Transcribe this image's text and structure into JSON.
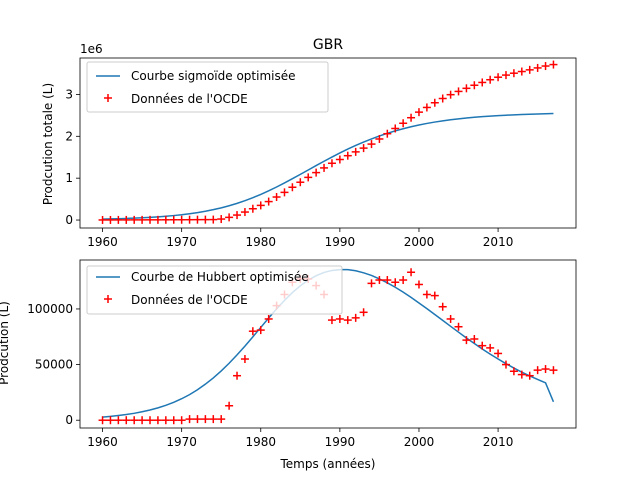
{
  "figure_title": "GBR",
  "colors": {
    "model": "#1f77b4",
    "data": "#ff0000"
  },
  "chart_data": [
    {
      "type": "line",
      "title": "",
      "xlabel": "",
      "ylabel": "Prodcution totale (L)",
      "y_multiplier_label": "1e6",
      "y_multiplier": 1000000,
      "xlim": [
        1957.15,
        2019.85
      ],
      "ylim": [
        -190000,
        3870000
      ],
      "x_ticks": [
        1960,
        1970,
        1980,
        1990,
        2000,
        2010
      ],
      "x_tick_labels": [
        "1960",
        "1970",
        "1980",
        "1990",
        "2000",
        "2010"
      ],
      "y_ticks": [
        0,
        1000000,
        2000000,
        3000000
      ],
      "y_tick_labels": [
        "0",
        "1",
        "2",
        "3"
      ],
      "legend_position": "upper-left",
      "legend": [
        "Courbe sigmoïde optimisée",
        "Données de l'OCDE"
      ],
      "x": [
        1960,
        1961,
        1962,
        1963,
        1964,
        1965,
        1966,
        1967,
        1968,
        1969,
        1970,
        1971,
        1972,
        1973,
        1974,
        1975,
        1976,
        1977,
        1978,
        1979,
        1980,
        1981,
        1982,
        1983,
        1984,
        1985,
        1986,
        1987,
        1988,
        1989,
        1990,
        1991,
        1992,
        1993,
        1994,
        1995,
        1996,
        1997,
        1998,
        1999,
        2000,
        2001,
        2002,
        2003,
        2004,
        2005,
        2006,
        2007,
        2008,
        2009,
        2010,
        2011,
        2012,
        2013,
        2014,
        2015,
        2016,
        2017
      ],
      "series": [
        {
          "name": "Courbe sigmoïde optimisée",
          "kind": "line",
          "values": [
            22000,
            27000,
            32000,
            38000,
            45000,
            54000,
            64000,
            76000,
            90000,
            107000,
            127000,
            151000,
            178000,
            210000,
            248000,
            291000,
            341000,
            398000,
            462000,
            533000,
            612000,
            697000,
            789000,
            886000,
            987000,
            1091000,
            1196000,
            1301000,
            1404000,
            1505000,
            1602000,
            1694000,
            1781000,
            1863000,
            1938000,
            2008000,
            2071000,
            2129000,
            2181000,
            2228000,
            2270000,
            2307000,
            2340000,
            2369000,
            2395000,
            2417000,
            2437000,
            2454000,
            2469000,
            2482000,
            2494000,
            2504000,
            2513000,
            2520000,
            2527000,
            2533000,
            2538000,
            2543000
          ]
        },
        {
          "name": "Données de l'OCDE",
          "kind": "scatter",
          "values": [
            2000,
            2000,
            3000,
            3000,
            4000,
            4000,
            5000,
            5000,
            6000,
            7000,
            7000,
            8000,
            9000,
            10000,
            11000,
            24000,
            64000,
            119000,
            191000,
            270000,
            350000,
            441000,
            550000,
            661000,
            783000,
            903000,
            1019000,
            1133000,
            1245000,
            1356000,
            1446000,
            1537000,
            1628000,
            1718000,
            1814000,
            1936000,
            2062000,
            2187000,
            2312000,
            2444000,
            2577000,
            2689000,
            2801000,
            2903000,
            2994000,
            3072000,
            3146000,
            3219000,
            3286000,
            3351000,
            3411000,
            3462000,
            3507000,
            3547000,
            3587000,
            3633000,
            3678000,
            3713000
          ]
        }
      ]
    },
    {
      "type": "line",
      "title": "",
      "xlabel": "Temps (années)",
      "ylabel": "Prodcution (L)",
      "xlim": [
        1957.15,
        2019.85
      ],
      "ylim": [
        -7000,
        144000
      ],
      "x_ticks": [
        1960,
        1970,
        1980,
        1990,
        2000,
        2010
      ],
      "x_tick_labels": [
        "1960",
        "1970",
        "1980",
        "1990",
        "2000",
        "2010"
      ],
      "y_ticks": [
        0,
        50000,
        100000
      ],
      "y_tick_labels": [
        "0",
        "50000",
        "100000"
      ],
      "legend_position": "upper-left",
      "legend": [
        "Courbe de Hubbert optimisée",
        "Données de l'OCDE"
      ],
      "x": [
        1960,
        1961,
        1962,
        1963,
        1964,
        1965,
        1966,
        1967,
        1968,
        1969,
        1970,
        1971,
        1972,
        1973,
        1974,
        1975,
        1976,
        1977,
        1978,
        1979,
        1980,
        1981,
        1982,
        1983,
        1984,
        1985,
        1986,
        1987,
        1988,
        1989,
        1990,
        1991,
        1992,
        1993,
        1994,
        1995,
        1996,
        1997,
        1998,
        1999,
        2000,
        2001,
        2002,
        2003,
        2004,
        2005,
        2006,
        2007,
        2008,
        2009,
        2010,
        2011,
        2012,
        2013,
        2014,
        2015,
        2016,
        2017
      ],
      "series": [
        {
          "name": "Courbe de Hubbert optimisée",
          "kind": "line",
          "values": [
            2800,
            3400,
            4200,
            5100,
            6200,
            7600,
            9200,
            11100,
            13400,
            16100,
            19300,
            23000,
            27400,
            32400,
            38000,
            44300,
            51200,
            58700,
            66600,
            74900,
            83400,
            91900,
            100100,
            107700,
            114700,
            120800,
            125900,
            129900,
            132800,
            134600,
            135400,
            135300,
            134300,
            132500,
            130100,
            127000,
            123500,
            119500,
            115100,
            110400,
            105400,
            100300,
            95000,
            89700,
            84400,
            79100,
            73900,
            68900,
            64000,
            59400,
            55000,
            50800,
            46900,
            43200,
            39800,
            36600,
            33600,
            16500
          ]
        },
        {
          "name": "Données de l'OCDE",
          "kind": "scatter",
          "values": [
            0,
            0,
            0,
            0,
            0,
            0,
            0,
            0,
            0,
            0,
            0,
            1000,
            1000,
            1000,
            1000,
            1000,
            13000,
            40000,
            55000,
            80000,
            81000,
            91000,
            103000,
            113000,
            124000,
            127000,
            127000,
            121000,
            113000,
            90000,
            91000,
            90000,
            92000,
            97000,
            123000,
            126000,
            126000,
            124000,
            126000,
            133000,
            122000,
            113000,
            112000,
            102000,
            91000,
            84000,
            72000,
            73000,
            67000,
            65000,
            60000,
            50000,
            44000,
            41000,
            40000,
            45000,
            46000,
            45000
          ]
        }
      ]
    }
  ]
}
